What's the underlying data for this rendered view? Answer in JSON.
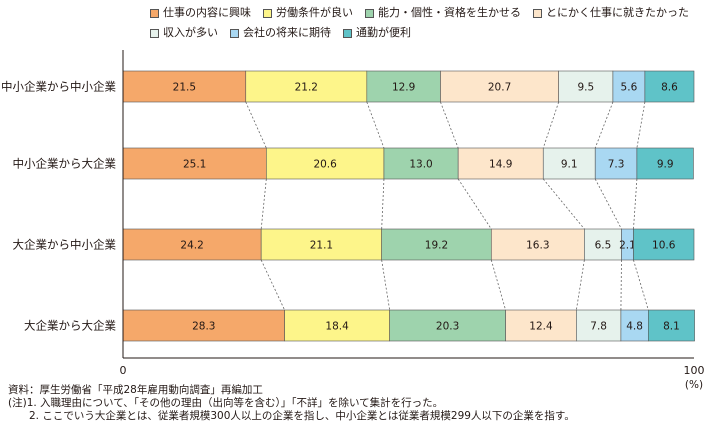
{
  "chart_data": {
    "type": "bar",
    "orientation": "horizontal",
    "stacked": true,
    "categories": [
      "中小企業から中小企業",
      "中小企業から大企業",
      "大企業から中小企業",
      "大企業から大企業"
    ],
    "series": [
      {
        "name": "仕事の内容に興味",
        "color": "#f5a86a",
        "values": [
          21.5,
          25.1,
          24.2,
          28.3
        ]
      },
      {
        "name": "労働条件が良い",
        "color": "#fdf58a",
        "values": [
          21.2,
          20.6,
          21.1,
          18.4
        ]
      },
      {
        "name": "能力・個性・資格を生かせる",
        "color": "#9ed3ad",
        "values": [
          12.9,
          13.0,
          19.2,
          20.3
        ]
      },
      {
        "name": "とにかく仕事に就きたかった",
        "color": "#fde6cb",
        "values": [
          20.7,
          14.9,
          16.3,
          12.4
        ]
      },
      {
        "name": "収入が多い",
        "color": "#e6f2ec",
        "values": [
          9.5,
          9.1,
          6.5,
          7.8
        ]
      },
      {
        "name": "会社の将来に期待",
        "color": "#a9d8f2",
        "values": [
          5.6,
          7.3,
          2.1,
          4.8
        ]
      },
      {
        "name": "通勤が便利",
        "color": "#5fc3c8",
        "values": [
          8.6,
          9.9,
          10.6,
          8.1
        ]
      }
    ],
    "xlim": [
      0,
      100
    ],
    "x_ticks": [
      "0",
      "100"
    ],
    "x_unit": "(%)",
    "grid": false,
    "connector_lines": "dashed",
    "legend_position": "top"
  },
  "notes": [
    "資料：厚生労働省「平成28年雇用動向調査」再編加工",
    "(注)1. 入職理由について、「その他の理由（出向等を含む）」「不詳」を除いて集計を行った。",
    "　　2. ここでいう大企業とは、従業者規模300人以上の企業を指し、中小企業とは従業者規模299人以下の企業を指す。"
  ]
}
